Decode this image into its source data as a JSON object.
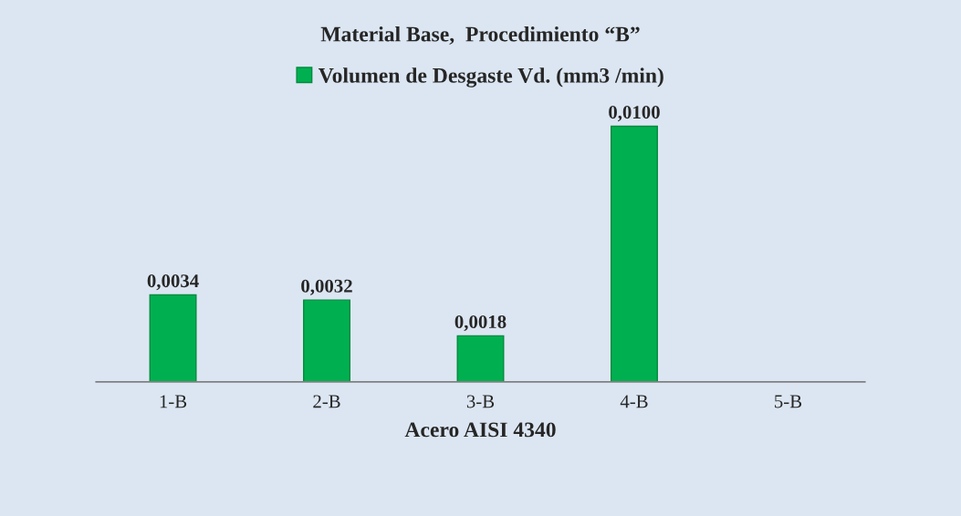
{
  "chart_data": {
    "type": "bar",
    "title": "Material Base,  Procedimiento “B”",
    "xlabel": "Acero AISI 4340",
    "categories": [
      "1-B",
      "2-B",
      "3-B",
      "4-B",
      "5-B"
    ],
    "series": [
      {
        "name": "Volumen de Desgaste Vd. (mm3 /min)",
        "color": "#00b050",
        "values": [
          0.0034,
          0.0032,
          0.0018,
          0.01,
          null
        ],
        "value_labels": [
          "0,0034",
          "0,0032",
          "0,0018",
          "0,0100",
          null
        ]
      }
    ],
    "legend": "top",
    "tick_labels": "x",
    "grid": false
  }
}
